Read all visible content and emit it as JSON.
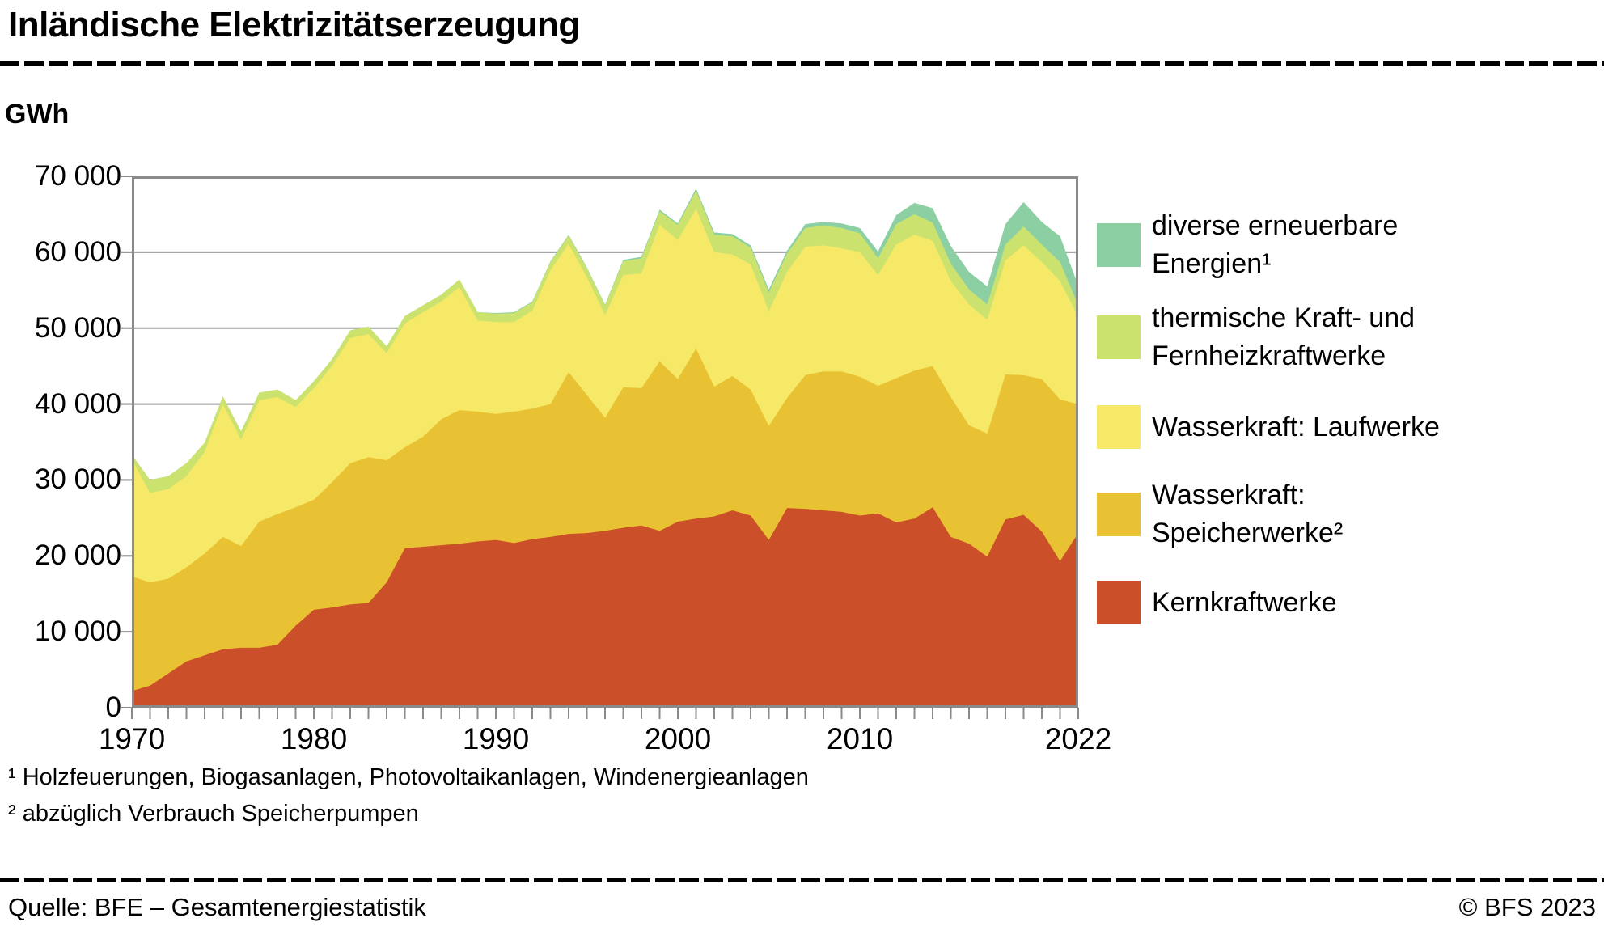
{
  "title": "Inländische Elektrizitätserzeugung",
  "y_axis_unit": "GWh",
  "footnotes": [
    "¹ Holzfeuerungen, Biogasanlagen, Photovoltaikanlagen, Windenergieanlagen",
    "² abzüglich Verbrauch Speicherpumpen"
  ],
  "source": "Quelle: BFE – Gesamtenergiestatistik",
  "copyright": "© BFS 2023",
  "legend": [
    {
      "id": "diverse",
      "label": "diverse erneuerbare\nEnergien¹",
      "color": "#8ccfa3"
    },
    {
      "id": "thermisch",
      "label": "thermische Kraft- und\nFernheizkraftwerke",
      "color": "#cbe36e"
    },
    {
      "id": "laufwerke",
      "label": "Wasserkraft: Laufwerke",
      "color": "#f6e967"
    },
    {
      "id": "speicher",
      "label": "Wasserkraft:\nSpeicherwerke²",
      "color": "#e9c233"
    },
    {
      "id": "kern",
      "label": "Kernkraftwerke",
      "color": "#cb4f28"
    }
  ],
  "chart_data": {
    "type": "area",
    "stacked": true,
    "title": "Inländische Elektrizitätserzeugung",
    "ylabel": "GWh",
    "xlabel": "",
    "ylim": [
      0,
      70000
    ],
    "grid": true,
    "grid_color": "#9b9b9b",
    "frame_color": "#8a8a8a",
    "legend_position": "right",
    "x": [
      1970,
      1971,
      1972,
      1973,
      1974,
      1975,
      1976,
      1977,
      1978,
      1979,
      1980,
      1981,
      1982,
      1983,
      1984,
      1985,
      1986,
      1987,
      1988,
      1989,
      1990,
      1991,
      1992,
      1993,
      1994,
      1995,
      1996,
      1997,
      1998,
      1999,
      2000,
      2001,
      2002,
      2003,
      2004,
      2005,
      2006,
      2007,
      2008,
      2009,
      2010,
      2011,
      2012,
      2013,
      2014,
      2015,
      2016,
      2017,
      2018,
      2019,
      2020,
      2021,
      2022
    ],
    "yticks": [
      0,
      10000,
      20000,
      30000,
      40000,
      50000,
      60000,
      70000
    ],
    "ytick_labels": [
      "0",
      "10 000",
      "20 000",
      "30 000",
      "40 000",
      "50 000",
      "60 000",
      "70 000"
    ],
    "xtick_years": [
      1970,
      1980,
      1990,
      2000,
      2010,
      2022
    ],
    "xtick_labels": [
      "1970",
      "1980",
      "1990",
      "2000",
      "2010",
      "2022"
    ],
    "series": [
      {
        "id": "kern",
        "name": "Kernkraftwerke",
        "color": "#cb4f28",
        "values": [
          2200,
          2900,
          4500,
          6100,
          6900,
          7700,
          7900,
          7900,
          8300,
          10800,
          12900,
          13200,
          13600,
          13800,
          16500,
          21000,
          21200,
          21400,
          21600,
          21900,
          22100,
          21700,
          22200,
          22500,
          22900,
          23000,
          23300,
          23700,
          24000,
          23300,
          24500,
          24900,
          25200,
          26000,
          25300,
          22100,
          26300,
          26200,
          26000,
          25800,
          25300,
          25600,
          24400,
          24900,
          26400,
          22500,
          21600,
          19900,
          24800,
          25400,
          23200,
          19300,
          23000
        ]
      },
      {
        "id": "speicher",
        "name": "Wasserkraft: Speicherwerke²",
        "color": "#e9c233",
        "values": [
          15100,
          13600,
          12500,
          12400,
          13400,
          14800,
          13400,
          16600,
          17200,
          15600,
          14500,
          16500,
          18600,
          19200,
          16100,
          13300,
          14500,
          16600,
          17600,
          17100,
          16600,
          17300,
          17200,
          17500,
          21300,
          18200,
          14900,
          18500,
          18100,
          22300,
          18800,
          22400,
          17100,
          17700,
          16600,
          15000,
          14500,
          17600,
          18300,
          18500,
          18300,
          16800,
          19000,
          19500,
          18600,
          18400,
          15600,
          16200,
          19100,
          18400,
          20100,
          21300,
          17000
        ]
      },
      {
        "id": "laufwerke",
        "name": "Wasserkraft: Laufwerke",
        "color": "#f6e967",
        "values": [
          15400,
          11800,
          11800,
          12000,
          13400,
          17500,
          14000,
          16000,
          15400,
          13200,
          14700,
          15300,
          16500,
          16200,
          14100,
          16300,
          16400,
          15500,
          16200,
          12000,
          12100,
          11800,
          12900,
          17600,
          16900,
          15500,
          13500,
          14800,
          15100,
          18000,
          18300,
          18400,
          17700,
          16000,
          16500,
          15100,
          16600,
          16900,
          16600,
          16200,
          16400,
          14600,
          17600,
          17900,
          16500,
          15300,
          15900,
          15000,
          15000,
          17100,
          15400,
          15600,
          11500
        ]
      },
      {
        "id": "thermisch",
        "name": "thermische Kraft- und Fernheizkraftwerke",
        "color": "#cbe36e",
        "values": [
          600,
          1700,
          1700,
          1700,
          1200,
          1000,
          1100,
          1000,
          1000,
          900,
          900,
          900,
          1000,
          1000,
          900,
          1000,
          900,
          900,
          1000,
          1100,
          1100,
          1200,
          1100,
          1100,
          1100,
          1200,
          1300,
          1800,
          2000,
          1800,
          2000,
          2400,
          2300,
          2400,
          2200,
          2500,
          2400,
          2500,
          2600,
          2700,
          2500,
          2200,
          2700,
          2700,
          2400,
          2300,
          2000,
          2000,
          2100,
          2500,
          2300,
          2500,
          1500
        ]
      },
      {
        "id": "diverse",
        "name": "diverse erneuerbare Energien¹",
        "color": "#8ccfa3",
        "values": [
          0,
          0,
          0,
          0,
          0,
          0,
          0,
          0,
          0,
          0,
          0,
          0,
          0,
          0,
          0,
          0,
          0,
          0,
          0,
          0,
          100,
          100,
          100,
          100,
          100,
          100,
          100,
          200,
          200,
          200,
          200,
          300,
          300,
          300,
          300,
          400,
          400,
          500,
          500,
          600,
          700,
          900,
          1200,
          1500,
          1900,
          2300,
          2300,
          2400,
          2700,
          3200,
          3000,
          3400,
          2600
        ]
      }
    ]
  }
}
